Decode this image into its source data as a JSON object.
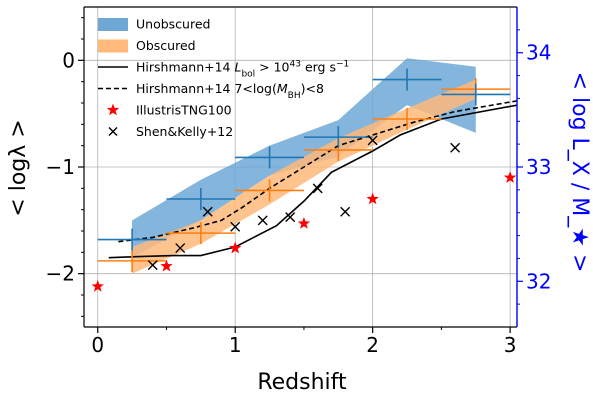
{
  "chart_data": {
    "type": "line",
    "xlabel": "Redshift",
    "ylabel": "< logλ >",
    "ylabel_right": "< log L_X / M_★ >",
    "xlim": [
      -0.1,
      3.05
    ],
    "ylim": [
      -2.5,
      0.5
    ],
    "ylim_right": [
      31.6,
      34.4
    ],
    "x_ticks": [
      "0",
      "1",
      "2",
      "3"
    ],
    "y_ticks": [
      "−2",
      "−1",
      "0"
    ],
    "y_right_ticks": [
      "32",
      "33",
      "34"
    ],
    "grid": true,
    "legend_position": "top-left",
    "colors": {
      "unobscured": "#1f77b4",
      "unobscured_band": "#6fa8d6",
      "obscured": "#ff7f0e",
      "obscured_band": "#ffb97a",
      "right_axis": "#0000ff",
      "tng": "#ff0000",
      "shen": "#000000"
    },
    "legend": [
      {
        "key": "unobscured",
        "label": "Unobscured"
      },
      {
        "key": "obscured",
        "label": "Obscured"
      },
      {
        "key": "h14_lbol",
        "label": "Hirshmann+14 L_bol > 10^43 erg s^-1"
      },
      {
        "key": "h14_mbh",
        "label": "Hirshmann+14 7<log(M_BH)<8"
      },
      {
        "key": "tng",
        "label": "IllustrisTNG100"
      },
      {
        "key": "shen",
        "label": "Shen&Kelly+12"
      }
    ],
    "unobscured": {
      "x": [
        0.25,
        0.75,
        1.25,
        1.75,
        2.25,
        2.75
      ],
      "xerr": [
        0.25,
        0.25,
        0.25,
        0.25,
        0.25,
        0.25
      ],
      "y": [
        -1.68,
        -1.3,
        -0.91,
        -0.72,
        -0.18,
        -0.32
      ],
      "band_x": [
        0.25,
        0.75,
        1.25,
        1.75,
        2.25,
        2.75
      ],
      "band_lo": [
        -1.85,
        -1.5,
        -1.08,
        -0.9,
        -0.42,
        -0.68
      ],
      "band_hi": [
        -1.5,
        -1.12,
        -0.8,
        -0.56,
        0.02,
        -0.06
      ]
    },
    "obscured": {
      "x": [
        0.25,
        0.75,
        1.25,
        1.75,
        2.25,
        2.75
      ],
      "xerr": [
        0.25,
        0.25,
        0.25,
        0.25,
        0.25,
        0.25
      ],
      "y": [
        -1.88,
        -1.62,
        -1.22,
        -0.84,
        -0.55,
        -0.27
      ],
      "band_x": [
        0.25,
        0.75,
        1.25,
        1.75,
        2.25,
        2.75
      ],
      "band_lo": [
        -2.0,
        -1.72,
        -1.35,
        -0.95,
        -0.65,
        -0.36
      ],
      "band_hi": [
        -1.75,
        -1.5,
        -1.08,
        -0.73,
        -0.45,
        -0.18
      ]
    },
    "h14_lbol": {
      "x": [
        0.08,
        0.3,
        0.55,
        0.75,
        1.0,
        1.15,
        1.3,
        1.5,
        1.7,
        2.0,
        2.2,
        2.5,
        3.05
      ],
      "y": [
        -1.85,
        -1.84,
        -1.83,
        -1.83,
        -1.75,
        -1.65,
        -1.55,
        -1.32,
        -1.05,
        -0.85,
        -0.7,
        -0.55,
        -0.42
      ]
    },
    "h14_mbh": {
      "x": [
        0.15,
        0.4,
        0.7,
        0.9,
        1.05,
        1.25,
        1.5,
        1.75,
        2.0,
        2.3,
        2.6,
        3.05
      ],
      "y": [
        -1.7,
        -1.66,
        -1.57,
        -1.5,
        -1.38,
        -1.2,
        -1.0,
        -0.8,
        -0.7,
        -0.58,
        -0.48,
        -0.38
      ]
    },
    "tng": {
      "x": [
        0.0,
        0.5,
        1.0,
        1.5,
        2.0,
        3.0
      ],
      "y": [
        -2.12,
        -1.93,
        -1.76,
        -1.53,
        -1.3,
        -1.1
      ]
    },
    "shen": {
      "x": [
        0.4,
        0.6,
        0.8,
        1.0,
        1.2,
        1.4,
        1.6,
        1.8,
        2.0,
        2.6
      ],
      "y": [
        -1.92,
        -1.76,
        -1.42,
        -1.56,
        -1.5,
        -1.47,
        -1.2,
        -1.42,
        -0.75,
        -0.82
      ]
    }
  }
}
